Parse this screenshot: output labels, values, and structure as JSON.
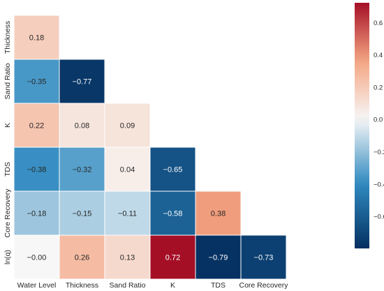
{
  "chart_data": {
    "type": "heatmap",
    "title": "",
    "xlabel": "",
    "ylabel": "",
    "x_categories": [
      "Water Level",
      "Thickness",
      "Sand Ratio",
      "K",
      "TDS",
      "Core Recovery"
    ],
    "y_categories": [
      "Thickness",
      "Sand Ratio",
      "K",
      "TDS",
      "Core Recovery",
      "ln(q)"
    ],
    "cells": [
      {
        "row": 0,
        "col": 0,
        "value": 0.18,
        "label": "0.18"
      },
      {
        "row": 1,
        "col": 0,
        "value": -0.35,
        "label": "−0.35"
      },
      {
        "row": 1,
        "col": 1,
        "value": -0.77,
        "label": "−0.77"
      },
      {
        "row": 2,
        "col": 0,
        "value": 0.22,
        "label": "0.22"
      },
      {
        "row": 2,
        "col": 1,
        "value": 0.08,
        "label": "0.08"
      },
      {
        "row": 2,
        "col": 2,
        "value": 0.09,
        "label": "0.09"
      },
      {
        "row": 3,
        "col": 0,
        "value": -0.38,
        "label": "−0.38"
      },
      {
        "row": 3,
        "col": 1,
        "value": -0.32,
        "label": "−0.32"
      },
      {
        "row": 3,
        "col": 2,
        "value": 0.04,
        "label": "0.04"
      },
      {
        "row": 3,
        "col": 3,
        "value": -0.65,
        "label": "−0.65"
      },
      {
        "row": 4,
        "col": 0,
        "value": -0.18,
        "label": "−0.18"
      },
      {
        "row": 4,
        "col": 1,
        "value": -0.15,
        "label": "−0.15"
      },
      {
        "row": 4,
        "col": 2,
        "value": -0.11,
        "label": "−0.11"
      },
      {
        "row": 4,
        "col": 3,
        "value": -0.58,
        "label": "−0.58"
      },
      {
        "row": 4,
        "col": 4,
        "value": 0.38,
        "label": "0.38"
      },
      {
        "row": 5,
        "col": 0,
        "value": -0.0,
        "label": "−0.00"
      },
      {
        "row": 5,
        "col": 1,
        "value": 0.26,
        "label": "0.26"
      },
      {
        "row": 5,
        "col": 2,
        "value": 0.13,
        "label": "0.13"
      },
      {
        "row": 5,
        "col": 3,
        "value": 0.72,
        "label": "0.72"
      },
      {
        "row": 5,
        "col": 4,
        "value": -0.79,
        "label": "−0.79"
      },
      {
        "row": 5,
        "col": 5,
        "value": -0.73,
        "label": "−0.73"
      }
    ],
    "colorbar": {
      "min": -0.8,
      "max": 0.72,
      "ticks": [
        0.6,
        0.4,
        0.2,
        0.0,
        -0.2,
        -0.4,
        -0.6
      ],
      "tick_labels": [
        "0.6",
        "0.4",
        "0.2",
        "0.0",
        "−0.2",
        "−0.4",
        "−0.6"
      ]
    },
    "colormap": "RdBu_r",
    "grid": false,
    "colors": {
      "neg_max": "#053061",
      "neg_mid": "#2f8ac0",
      "neutral": "#f7f7f7",
      "pos_mid": "#f4a582",
      "pos_max": "#a50f26"
    }
  }
}
